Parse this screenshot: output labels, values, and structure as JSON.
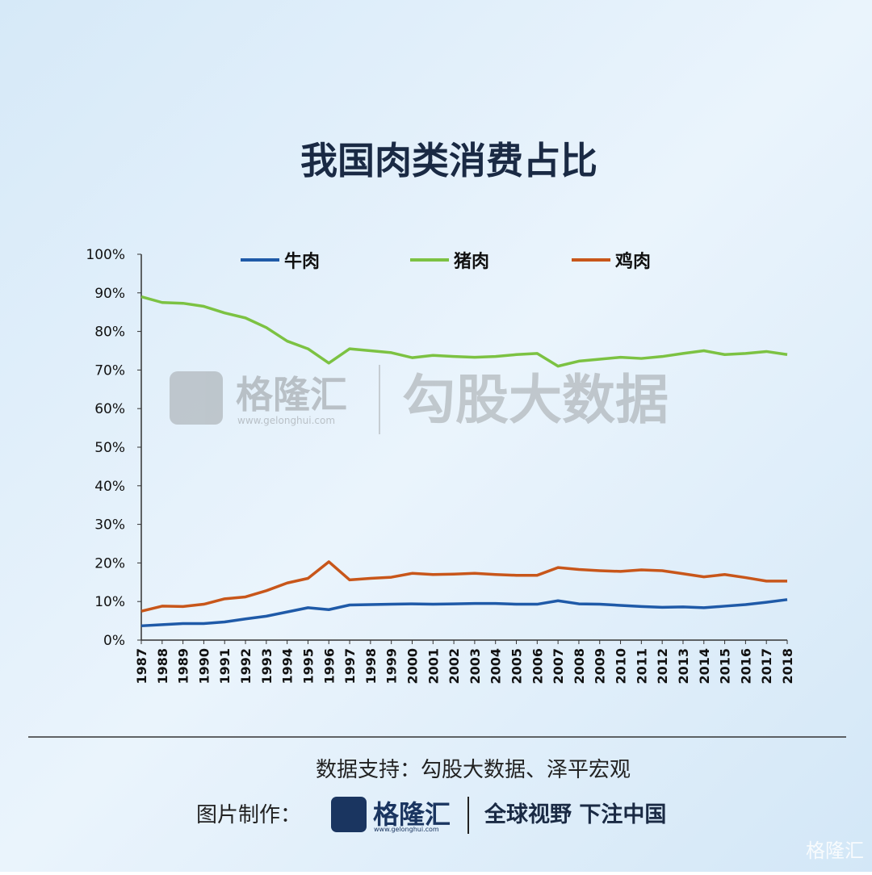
{
  "chart_data": {
    "type": "line",
    "title": "我国肉类消费占比",
    "categories": [
      "1987",
      "1988",
      "1989",
      "1990",
      "1991",
      "1992",
      "1993",
      "1994",
      "1995",
      "1996",
      "1997",
      "1998",
      "1999",
      "2000",
      "2001",
      "2002",
      "2003",
      "2004",
      "2005",
      "2006",
      "2007",
      "2008",
      "2009",
      "2010",
      "2011",
      "2012",
      "2013",
      "2014",
      "2015",
      "2016",
      "2017",
      "2018"
    ],
    "series": [
      {
        "name": "牛肉",
        "color": "#1f5aa8",
        "values": [
          3.7,
          4.0,
          4.3,
          4.3,
          4.7,
          5.5,
          6.2,
          7.3,
          8.4,
          7.9,
          9.1,
          9.2,
          9.3,
          9.4,
          9.3,
          9.4,
          9.5,
          9.5,
          9.3,
          9.3,
          10.2,
          9.4,
          9.3,
          9.0,
          8.7,
          8.5,
          8.6,
          8.4,
          8.8,
          9.2,
          9.8,
          10.5
        ]
      },
      {
        "name": "猪肉",
        "color": "#7cc242",
        "values": [
          89,
          87.5,
          87.3,
          86.5,
          84.8,
          83.5,
          81,
          77.5,
          75.5,
          71.8,
          75.5,
          75,
          74.5,
          73.2,
          73.8,
          73.5,
          73.3,
          73.5,
          74,
          74.3,
          71,
          72.3,
          72.8,
          73.3,
          73,
          73.5,
          74.3,
          75,
          74,
          74.3,
          74.8,
          74
        ]
      },
      {
        "name": "鸡肉",
        "color": "#c8561a",
        "values": [
          7.5,
          8.8,
          8.7,
          9.3,
          10.7,
          11.2,
          12.8,
          14.8,
          16,
          20.3,
          15.6,
          16,
          16.3,
          17.3,
          17,
          17.1,
          17.3,
          17,
          16.8,
          16.8,
          18.8,
          18.3,
          18,
          17.8,
          18.2,
          18,
          17.2,
          16.4,
          17,
          16.2,
          15.3,
          15.3
        ]
      }
    ],
    "ylim": [
      0,
      100
    ],
    "yticks": [
      {
        "value": 0,
        "label": "0%"
      },
      {
        "value": 10,
        "label": "10%"
      },
      {
        "value": 20,
        "label": "20%"
      },
      {
        "value": 30,
        "label": "30%"
      },
      {
        "value": 40,
        "label": "40%"
      },
      {
        "value": 50,
        "label": "50%"
      },
      {
        "value": 60,
        "label": "60%"
      },
      {
        "value": 70,
        "label": "70%"
      },
      {
        "value": 80,
        "label": "80%"
      },
      {
        "value": 90,
        "label": "90%"
      },
      {
        "value": 100,
        "label": "100%"
      }
    ],
    "legend": "top"
  },
  "watermark": {
    "brand": "格隆汇",
    "url": "www.gelonghui.com",
    "name": "勾股大数据"
  },
  "footer": {
    "source": "数据支持：勾股大数据、泽平宏观",
    "credit_label": "图片制作：",
    "brand": "格隆汇",
    "url": "www.gelonghui.com",
    "slogan": "全球视野 下注中国",
    "corner_brand": "格隆汇"
  }
}
